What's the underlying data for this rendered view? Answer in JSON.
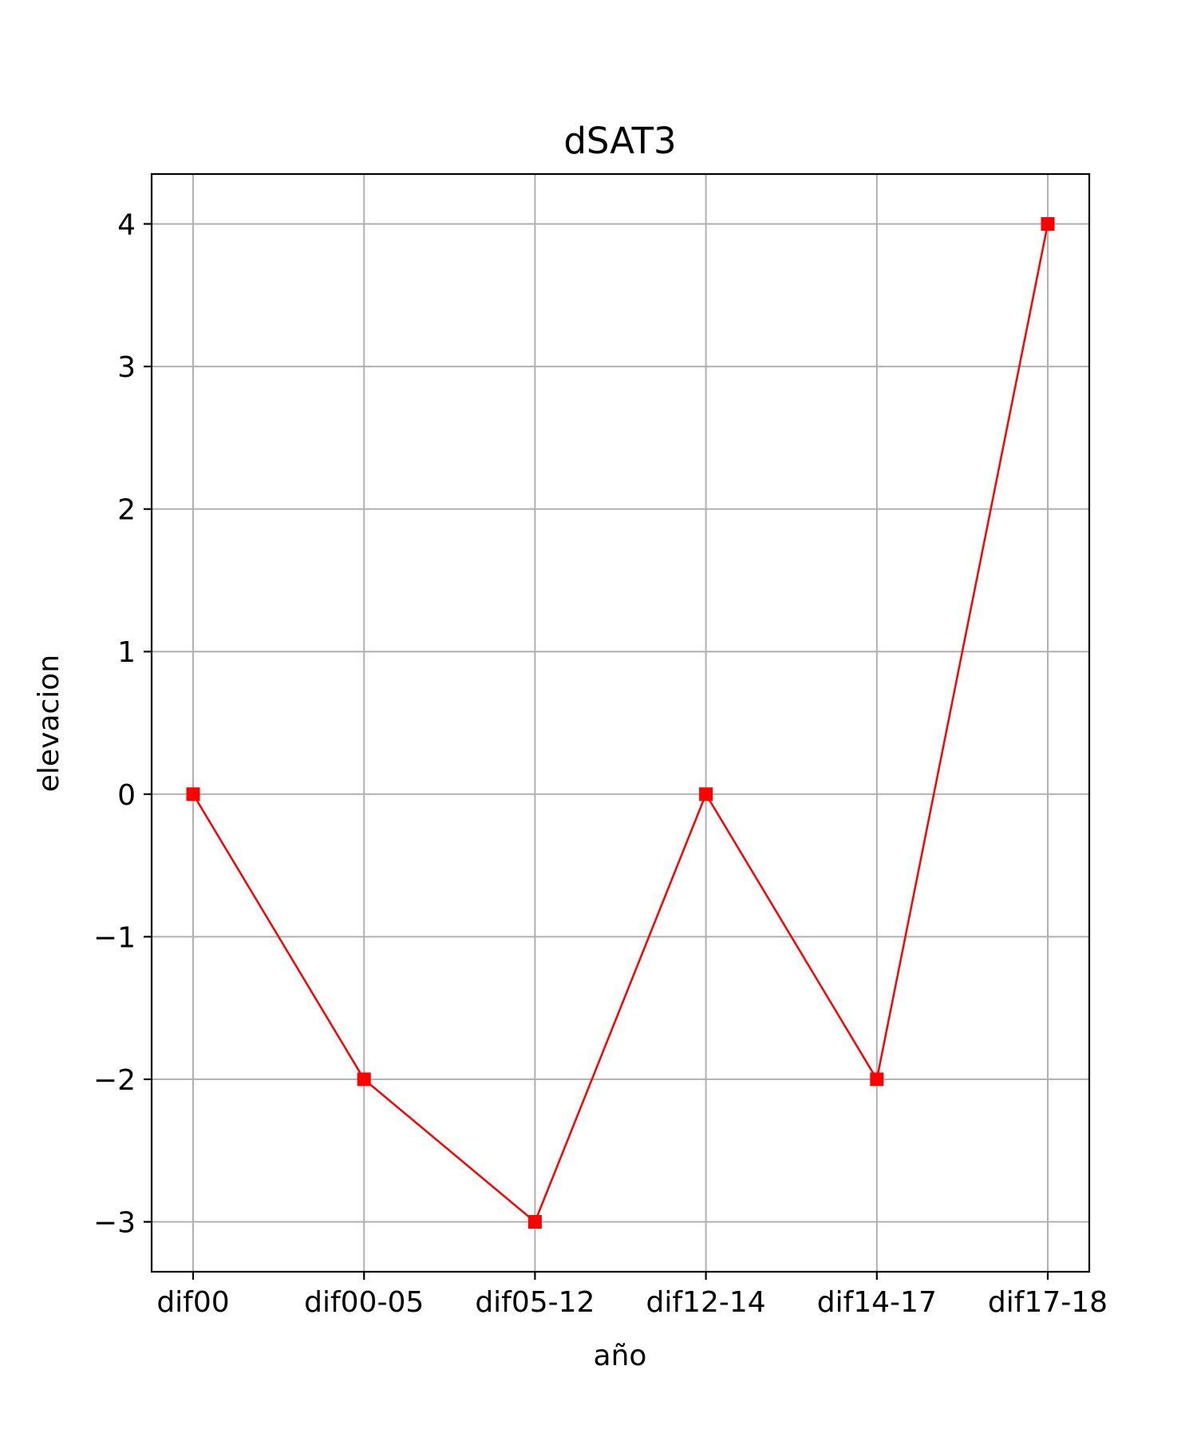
{
  "chart_data": {
    "type": "line",
    "title": "dSAT3",
    "xlabel": "año",
    "ylabel": "elevacion",
    "categories": [
      "dif00",
      "dif00-05",
      "dif05-12",
      "dif12-14",
      "dif14-17",
      "dif17-18"
    ],
    "series": [
      {
        "values": [
          0,
          -2,
          -3,
          0,
          -2,
          4
        ],
        "color": "#ff0000",
        "marker": "square"
      }
    ],
    "yticks": [
      -3,
      -2,
      -1,
      0,
      1,
      2,
      3,
      4
    ],
    "ytick_labels": [
      "−3",
      "−2",
      "−1",
      "0",
      "1",
      "2",
      "3",
      "4"
    ],
    "ylim": [
      -3.35,
      4.35
    ],
    "grid": true,
    "legend": "none"
  }
}
